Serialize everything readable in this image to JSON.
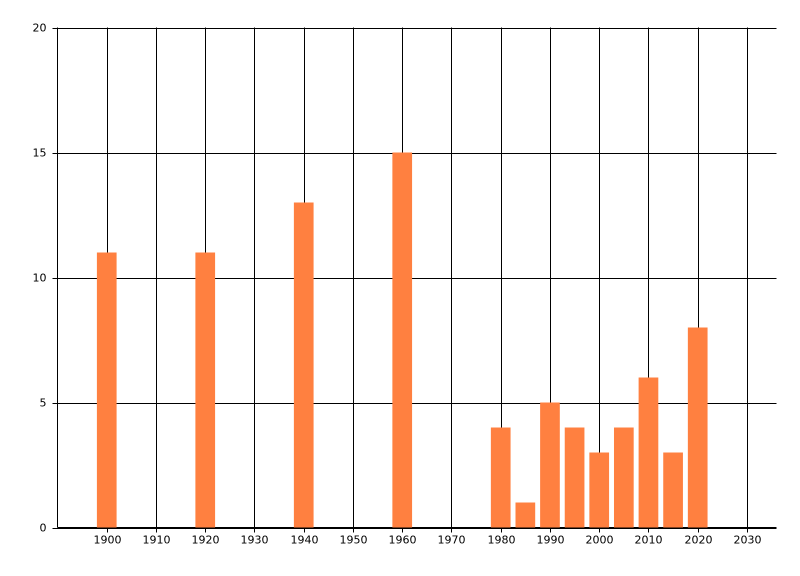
{
  "chart_data": {
    "type": "bar",
    "x": [
      1900,
      1920,
      1940,
      1960,
      1980,
      1985,
      1990,
      1995,
      2000,
      2005,
      2010,
      2015,
      2020
    ],
    "values": [
      11,
      11,
      13,
      15,
      4,
      1,
      5,
      4,
      3,
      4,
      6,
      3,
      8
    ],
    "color": "#ff8040",
    "xlim": [
      1890,
      2036
    ],
    "xticks": [
      1900,
      1910,
      1920,
      1930,
      1940,
      1950,
      1960,
      1970,
      1980,
      1990,
      2000,
      2010,
      2020,
      2030
    ],
    "ylim": [
      0,
      20
    ],
    "yticks": [
      0,
      5,
      10,
      15,
      20
    ],
    "grid": true
  }
}
